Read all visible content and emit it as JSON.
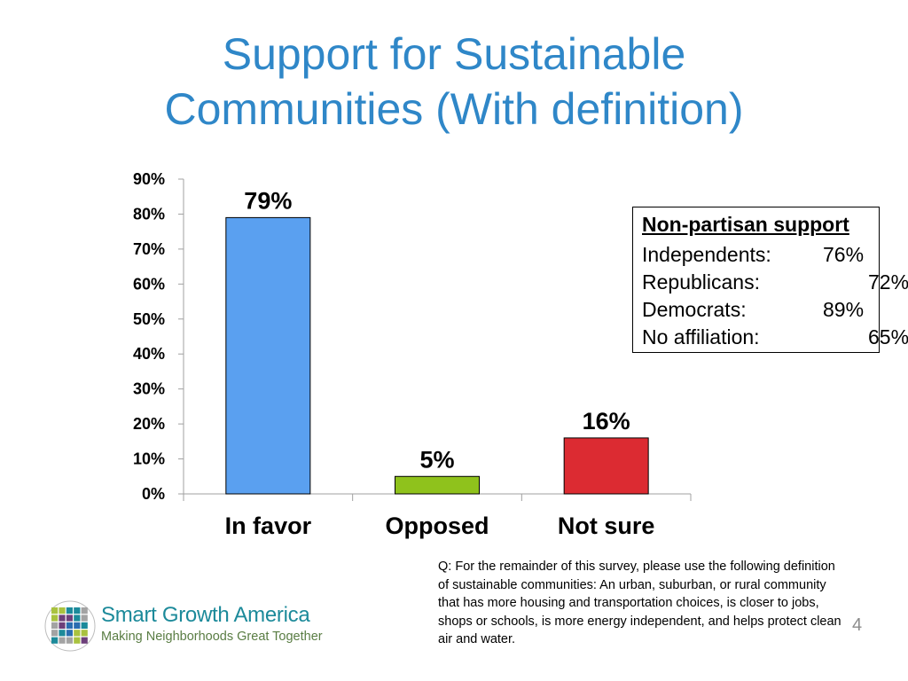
{
  "title_line1": "Support for Sustainable",
  "title_line2": "Communities (With definition)",
  "chart_data": {
    "type": "bar",
    "categories": [
      "In favor",
      "Opposed",
      "Not sure"
    ],
    "values": [
      79,
      5,
      16
    ],
    "data_labels": [
      "79%",
      "5%",
      "16%"
    ],
    "colors": [
      "#5aa0f0",
      "#8fc21c",
      "#dc2b32"
    ],
    "ylim": [
      0,
      90
    ],
    "yticks": [
      0,
      10,
      20,
      30,
      40,
      50,
      60,
      70,
      80,
      90
    ],
    "ytick_labels": [
      "0%",
      "10%",
      "20%",
      "30%",
      "40%",
      "50%",
      "60%",
      "70%",
      "80%",
      "90%"
    ],
    "grid": false,
    "xlabel": "",
    "ylabel": ""
  },
  "support_box": {
    "title": "Non-partisan support",
    "rows": [
      {
        "label": "Independents:",
        "value": "76%"
      },
      {
        "label": "Republicans:",
        "value": "72%"
      },
      {
        "label": "Democrats:",
        "value": "89%"
      },
      {
        "label": "No affiliation:",
        "value": "65%"
      }
    ]
  },
  "question_text": "Q: For the remainder of this survey, please use the following definition of sustainable communities: An urban, suburban, or rural community that has more housing and transportation choices, is closer to jobs, shops or schools, is more energy independent, and helps protect clean air and water.",
  "page_number": "4",
  "logo": {
    "name": "Smart Growth America",
    "tagline": "Making Neighborhoods Great Together",
    "colors": [
      "#a9c23f",
      "#1c8a9a",
      "#6d3f7a",
      "#a3a3a3",
      "#2a6db0"
    ]
  }
}
